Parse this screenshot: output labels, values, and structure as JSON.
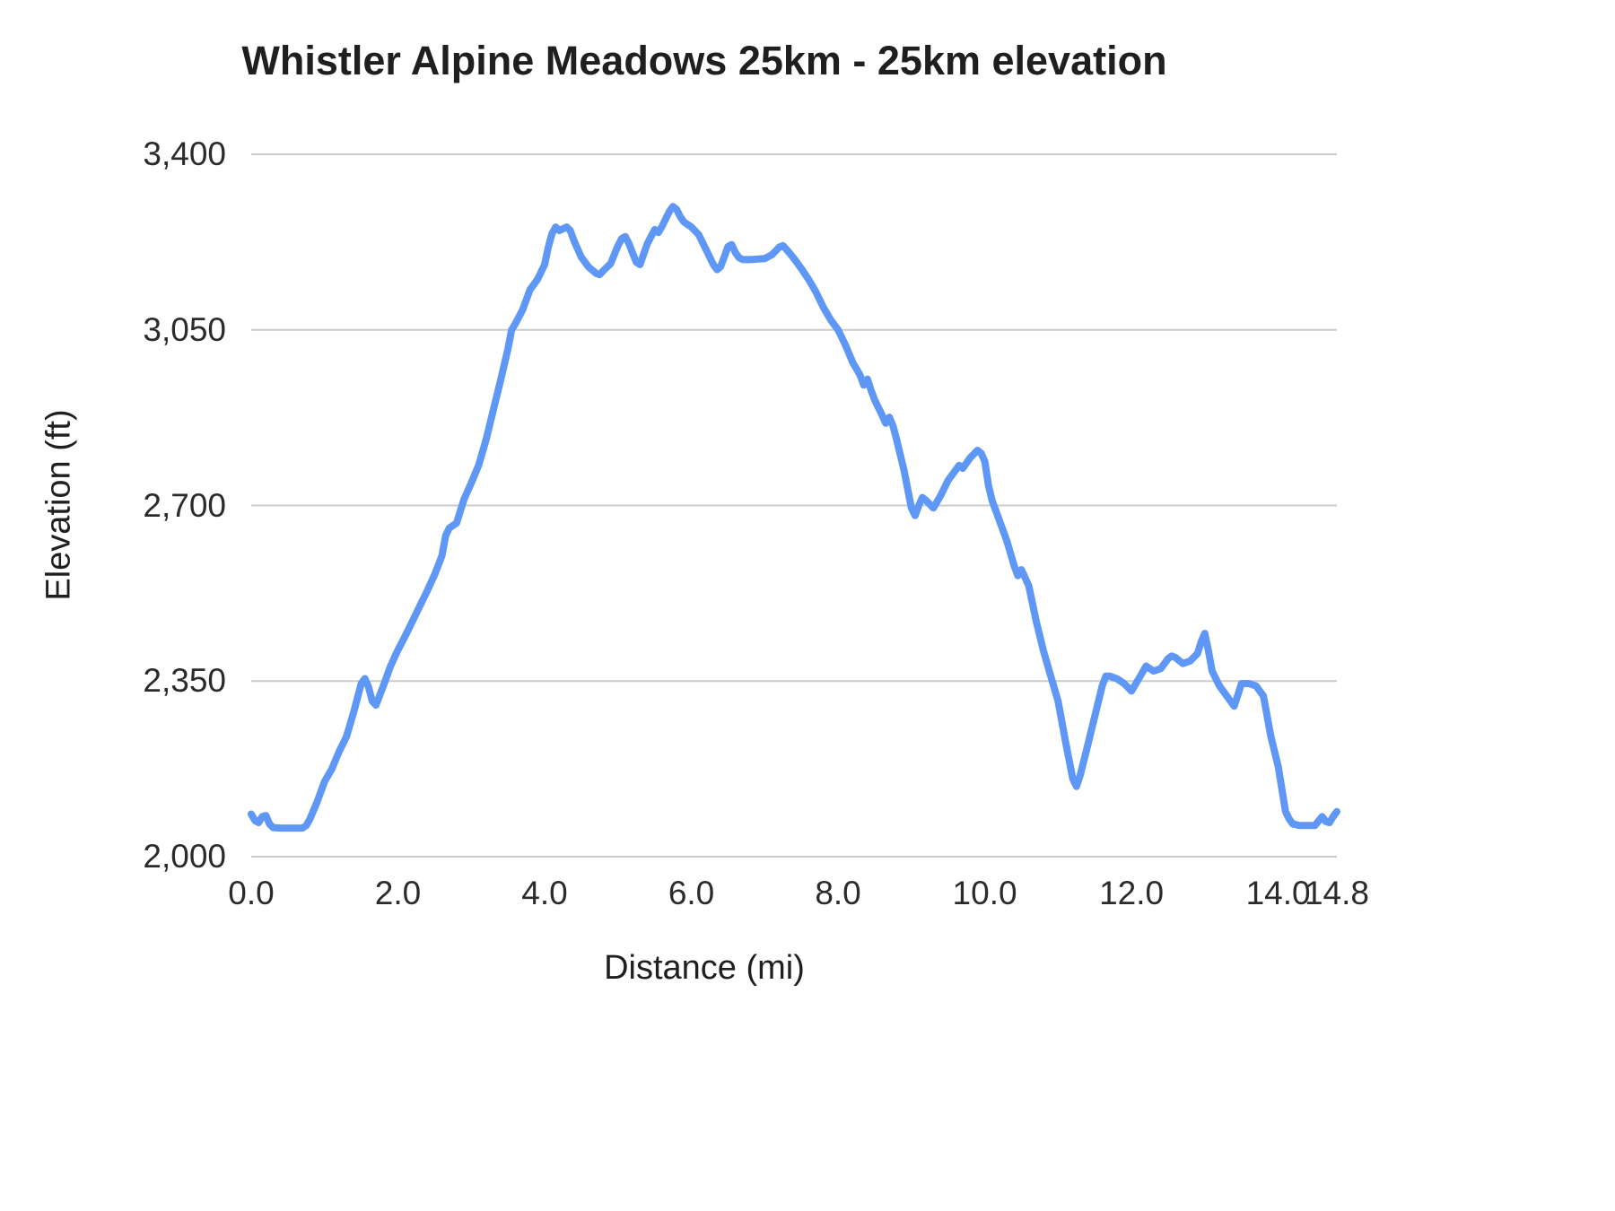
{
  "chart_data": {
    "type": "line",
    "title": "Whistler Alpine Meadows 25km - 25km elevation",
    "xlabel": "Distance (mi)",
    "ylabel": "Elevation (ft)",
    "xlim": [
      0,
      14.8
    ],
    "ylim": [
      2000,
      3400
    ],
    "grid": "horizontal-only",
    "legend": "none",
    "line_color": "#5e97f6",
    "grid_color": "#cccccc",
    "text_color": "#2b2b2b",
    "x_ticks": [
      {
        "value": 0,
        "label": "0.0"
      },
      {
        "value": 2,
        "label": "2.0"
      },
      {
        "value": 4,
        "label": "4.0"
      },
      {
        "value": 6,
        "label": "6.0"
      },
      {
        "value": 8,
        "label": "8.0"
      },
      {
        "value": 10,
        "label": "10.0"
      },
      {
        "value": 12,
        "label": "12.0"
      },
      {
        "value": 14,
        "label": "14.0"
      },
      {
        "value": 14.8,
        "label": "14.8"
      }
    ],
    "y_ticks": [
      {
        "value": 2000,
        "label": "2,000"
      },
      {
        "value": 2350,
        "label": "2,350"
      },
      {
        "value": 2700,
        "label": "2,700"
      },
      {
        "value": 3050,
        "label": "3,050"
      },
      {
        "value": 3400,
        "label": "3,400"
      }
    ],
    "points": [
      [
        0.0,
        2085
      ],
      [
        0.05,
        2072
      ],
      [
        0.1,
        2068
      ],
      [
        0.15,
        2080
      ],
      [
        0.2,
        2082
      ],
      [
        0.25,
        2065
      ],
      [
        0.3,
        2058
      ],
      [
        0.4,
        2057
      ],
      [
        0.5,
        2057
      ],
      [
        0.6,
        2057
      ],
      [
        0.7,
        2057
      ],
      [
        0.75,
        2062
      ],
      [
        0.8,
        2075
      ],
      [
        0.9,
        2110
      ],
      [
        1.0,
        2150
      ],
      [
        1.1,
        2175
      ],
      [
        1.2,
        2210
      ],
      [
        1.3,
        2240
      ],
      [
        1.4,
        2290
      ],
      [
        1.5,
        2345
      ],
      [
        1.55,
        2355
      ],
      [
        1.6,
        2338
      ],
      [
        1.65,
        2310
      ],
      [
        1.7,
        2302
      ],
      [
        1.8,
        2340
      ],
      [
        1.9,
        2380
      ],
      [
        2.0,
        2412
      ],
      [
        2.1,
        2440
      ],
      [
        2.2,
        2470
      ],
      [
        2.3,
        2500
      ],
      [
        2.4,
        2530
      ],
      [
        2.5,
        2562
      ],
      [
        2.6,
        2600
      ],
      [
        2.65,
        2640
      ],
      [
        2.7,
        2655
      ],
      [
        2.8,
        2665
      ],
      [
        2.9,
        2712
      ],
      [
        3.0,
        2745
      ],
      [
        3.1,
        2780
      ],
      [
        3.2,
        2830
      ],
      [
        3.3,
        2890
      ],
      [
        3.4,
        2950
      ],
      [
        3.5,
        3012
      ],
      [
        3.55,
        3050
      ],
      [
        3.6,
        3062
      ],
      [
        3.7,
        3090
      ],
      [
        3.8,
        3130
      ],
      [
        3.9,
        3150
      ],
      [
        4.0,
        3180
      ],
      [
        4.05,
        3215
      ],
      [
        4.1,
        3242
      ],
      [
        4.15,
        3255
      ],
      [
        4.2,
        3248
      ],
      [
        4.3,
        3255
      ],
      [
        4.35,
        3248
      ],
      [
        4.4,
        3228
      ],
      [
        4.5,
        3195
      ],
      [
        4.6,
        3175
      ],
      [
        4.7,
        3163
      ],
      [
        4.75,
        3160
      ],
      [
        4.8,
        3168
      ],
      [
        4.9,
        3182
      ],
      [
        5.0,
        3218
      ],
      [
        5.05,
        3232
      ],
      [
        5.1,
        3236
      ],
      [
        5.15,
        3222
      ],
      [
        5.2,
        3203
      ],
      [
        5.25,
        3185
      ],
      [
        5.3,
        3180
      ],
      [
        5.4,
        3222
      ],
      [
        5.5,
        3250
      ],
      [
        5.55,
        3244
      ],
      [
        5.6,
        3256
      ],
      [
        5.7,
        3286
      ],
      [
        5.75,
        3296
      ],
      [
        5.8,
        3290
      ],
      [
        5.85,
        3275
      ],
      [
        5.9,
        3265
      ],
      [
        6.0,
        3255
      ],
      [
        6.1,
        3240
      ],
      [
        6.2,
        3210
      ],
      [
        6.3,
        3180
      ],
      [
        6.35,
        3170
      ],
      [
        6.4,
        3176
      ],
      [
        6.45,
        3196
      ],
      [
        6.5,
        3216
      ],
      [
        6.55,
        3220
      ],
      [
        6.6,
        3204
      ],
      [
        6.65,
        3194
      ],
      [
        6.7,
        3190
      ],
      [
        6.8,
        3190
      ],
      [
        6.9,
        3191
      ],
      [
        7.0,
        3192
      ],
      [
        7.1,
        3200
      ],
      [
        7.2,
        3215
      ],
      [
        7.25,
        3218
      ],
      [
        7.3,
        3210
      ],
      [
        7.4,
        3192
      ],
      [
        7.5,
        3172
      ],
      [
        7.6,
        3150
      ],
      [
        7.7,
        3125
      ],
      [
        7.8,
        3095
      ],
      [
        7.9,
        3070
      ],
      [
        8.0,
        3050
      ],
      [
        8.1,
        3020
      ],
      [
        8.2,
        2985
      ],
      [
        8.3,
        2960
      ],
      [
        8.35,
        2940
      ],
      [
        8.4,
        2952
      ],
      [
        8.45,
        2930
      ],
      [
        8.5,
        2910
      ],
      [
        8.6,
        2880
      ],
      [
        8.65,
        2864
      ],
      [
        8.7,
        2876
      ],
      [
        8.75,
        2858
      ],
      [
        8.8,
        2830
      ],
      [
        8.9,
        2770
      ],
      [
        9.0,
        2695
      ],
      [
        9.05,
        2680
      ],
      [
        9.1,
        2700
      ],
      [
        9.15,
        2716
      ],
      [
        9.2,
        2710
      ],
      [
        9.3,
        2695
      ],
      [
        9.4,
        2720
      ],
      [
        9.5,
        2750
      ],
      [
        9.6,
        2770
      ],
      [
        9.65,
        2780
      ],
      [
        9.7,
        2774
      ],
      [
        9.8,
        2795
      ],
      [
        9.9,
        2810
      ],
      [
        9.95,
        2804
      ],
      [
        10.0,
        2788
      ],
      [
        10.05,
        2740
      ],
      [
        10.1,
        2710
      ],
      [
        10.2,
        2670
      ],
      [
        10.3,
        2630
      ],
      [
        10.4,
        2580
      ],
      [
        10.45,
        2560
      ],
      [
        10.5,
        2572
      ],
      [
        10.55,
        2556
      ],
      [
        10.6,
        2540
      ],
      [
        10.7,
        2470
      ],
      [
        10.8,
        2410
      ],
      [
        10.9,
        2360
      ],
      [
        11.0,
        2310
      ],
      [
        11.1,
        2230
      ],
      [
        11.2,
        2155
      ],
      [
        11.25,
        2140
      ],
      [
        11.3,
        2162
      ],
      [
        11.4,
        2220
      ],
      [
        11.5,
        2280
      ],
      [
        11.6,
        2340
      ],
      [
        11.65,
        2360
      ],
      [
        11.7,
        2360
      ],
      [
        11.8,
        2355
      ],
      [
        11.9,
        2345
      ],
      [
        12.0,
        2330
      ],
      [
        12.1,
        2355
      ],
      [
        12.2,
        2380
      ],
      [
        12.3,
        2370
      ],
      [
        12.4,
        2375
      ],
      [
        12.5,
        2395
      ],
      [
        12.55,
        2400
      ],
      [
        12.6,
        2397
      ],
      [
        12.7,
        2385
      ],
      [
        12.8,
        2390
      ],
      [
        12.9,
        2405
      ],
      [
        12.95,
        2428
      ],
      [
        13.0,
        2445
      ],
      [
        13.05,
        2410
      ],
      [
        13.1,
        2370
      ],
      [
        13.2,
        2340
      ],
      [
        13.3,
        2320
      ],
      [
        13.4,
        2300
      ],
      [
        13.45,
        2322
      ],
      [
        13.5,
        2345
      ],
      [
        13.6,
        2345
      ],
      [
        13.7,
        2340
      ],
      [
        13.8,
        2320
      ],
      [
        13.9,
        2240
      ],
      [
        14.0,
        2180
      ],
      [
        14.1,
        2090
      ],
      [
        14.15,
        2075
      ],
      [
        14.2,
        2065
      ],
      [
        14.3,
        2062
      ],
      [
        14.4,
        2062
      ],
      [
        14.5,
        2062
      ],
      [
        14.6,
        2080
      ],
      [
        14.65,
        2070
      ],
      [
        14.7,
        2068
      ],
      [
        14.75,
        2080
      ],
      [
        14.8,
        2090
      ]
    ]
  }
}
